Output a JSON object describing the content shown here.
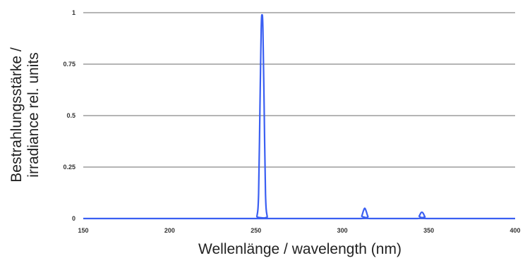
{
  "chart_data": {
    "type": "line",
    "ylabel_line1": "Bestrahlungsstärke /",
    "ylabel_line2": "irradiance rel. units",
    "xlabel": "Wellenlänge / wavelength (nm)",
    "xlim": [
      150,
      400
    ],
    "ylim": [
      0,
      1
    ],
    "x_ticks": [
      150,
      200,
      250,
      300,
      350,
      400
    ],
    "y_ticks": [
      0,
      0.25,
      0.5,
      0.75,
      1
    ],
    "x_tick_labels": [
      "150",
      "200",
      "250",
      "300",
      "350",
      "400"
    ],
    "y_tick_labels": [
      "0",
      "0.25",
      "0.5",
      "0.75",
      "1"
    ],
    "grid": true,
    "series": [
      {
        "color": "#3a5ff2",
        "x": [
          150,
          249,
          250.5,
          251.5,
          252.3,
          253,
          253.5,
          254,
          254.7,
          255.5,
          256.5,
          258,
          310,
          311.2,
          312.2,
          313,
          313.8,
          314.8,
          316,
          343.5,
          344.5,
          345.5,
          346.3,
          347,
          347.8,
          349,
          400
        ],
        "y": [
          0,
          0,
          0.01,
          0.12,
          0.55,
          0.92,
          0.99,
          0.92,
          0.55,
          0.12,
          0.01,
          0,
          0,
          0.012,
          0.038,
          0.05,
          0.035,
          0.01,
          0,
          0,
          0.012,
          0.028,
          0.03,
          0.022,
          0.008,
          0,
          0
        ]
      }
    ]
  }
}
